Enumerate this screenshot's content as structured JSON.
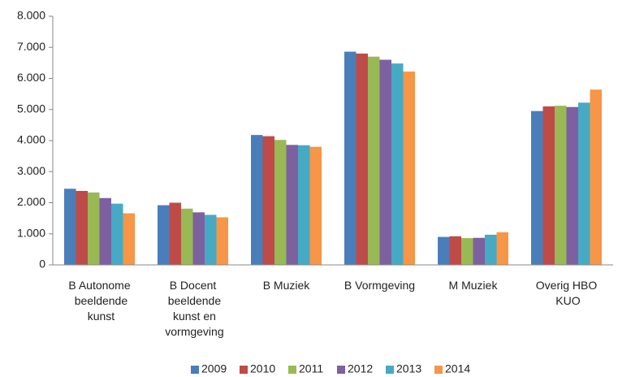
{
  "chart_data": {
    "type": "bar",
    "categories": [
      "B Autonome beeldende kunst",
      "B Docent beeldende kunst en vormgeving",
      "B Muziek",
      "B Vormgeving",
      "M Muziek",
      "Overig HBO KUO"
    ],
    "series": [
      {
        "name": "2009",
        "color": "#4a7ebb",
        "values": [
          2450,
          1920,
          4180,
          6860,
          900,
          4950
        ]
      },
      {
        "name": "2010",
        "color": "#be4b48",
        "values": [
          2380,
          2000,
          4140,
          6800,
          920,
          5100
        ]
      },
      {
        "name": "2011",
        "color": "#98b954",
        "values": [
          2330,
          1810,
          4020,
          6700,
          860,
          5120
        ]
      },
      {
        "name": "2012",
        "color": "#7d60a0",
        "values": [
          2150,
          1690,
          3860,
          6600,
          870,
          5080
        ]
      },
      {
        "name": "2013",
        "color": "#46aac5",
        "values": [
          1970,
          1610,
          3850,
          6480,
          970,
          5220
        ]
      },
      {
        "name": "2014",
        "color": "#f79646",
        "values": [
          1660,
          1530,
          3800,
          6220,
          1050,
          5640
        ]
      }
    ],
    "ylim": [
      0,
      8000
    ],
    "yticks": [
      {
        "value": 0,
        "label": "0"
      },
      {
        "value": 1000,
        "label": "1.000"
      },
      {
        "value": 2000,
        "label": "2.000"
      },
      {
        "value": 3000,
        "label": "3.000"
      },
      {
        "value": 4000,
        "label": "4.000"
      },
      {
        "value": 5000,
        "label": "5.000"
      },
      {
        "value": 6000,
        "label": "6.000"
      },
      {
        "value": 7000,
        "label": "7.000"
      },
      {
        "value": 8000,
        "label": "8.000"
      }
    ],
    "legend": "bottom",
    "grid": false
  }
}
